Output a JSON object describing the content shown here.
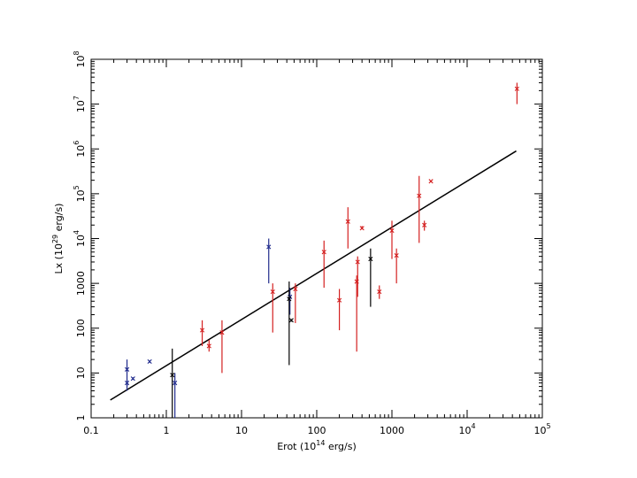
{
  "chart_data": {
    "type": "scatter",
    "title": "",
    "xlabel": "Erot (10",
    "xlabel_exp": "14",
    "xlabel_unit": " erg/s)",
    "ylabel": "Lx (10",
    "ylabel_exp": "29",
    "ylabel_unit": " erg/s)",
    "x_scale": "log",
    "y_scale": "log",
    "xlim": [
      0.1,
      100000
    ],
    "ylim": [
      1,
      100000000
    ],
    "grid": false,
    "legend": "none",
    "x_ticks": [
      {
        "value": 0.1,
        "base": "0.1",
        "exp": ""
      },
      {
        "value": 1,
        "base": "1",
        "exp": ""
      },
      {
        "value": 10,
        "base": "10",
        "exp": ""
      },
      {
        "value": 100,
        "base": "100",
        "exp": ""
      },
      {
        "value": 1000,
        "base": "1000",
        "exp": ""
      },
      {
        "value": 10000,
        "base": "10",
        "exp": "4"
      },
      {
        "value": 100000,
        "base": "10",
        "exp": "5"
      }
    ],
    "y_ticks": [
      {
        "value": 1,
        "base": "1",
        "exp": ""
      },
      {
        "value": 10,
        "base": "10",
        "exp": ""
      },
      {
        "value": 100,
        "base": "100",
        "exp": ""
      },
      {
        "value": 1000,
        "base": "1000",
        "exp": ""
      },
      {
        "value": 10000,
        "base": "10",
        "exp": "4"
      },
      {
        "value": 100000,
        "base": "10",
        "exp": "5"
      },
      {
        "value": 1000000,
        "base": "10",
        "exp": "6"
      },
      {
        "value": 10000000,
        "base": "10",
        "exp": "7"
      },
      {
        "value": 100000000,
        "base": "10",
        "exp": "8"
      }
    ],
    "colors": {
      "red": "#d42020",
      "blue": "#1f2a8c",
      "black": "#000000",
      "fit": "#000000"
    },
    "fit_line": {
      "x": [
        0.18,
        45000
      ],
      "y": [
        2.5,
        900000
      ]
    },
    "series": [
      {
        "color": "red",
        "points": [
          {
            "x": 3.0,
            "y": 90,
            "ylo": 40,
            "yhi": 150
          },
          {
            "x": 3.7,
            "y": 40,
            "ylo": 30,
            "yhi": 55
          },
          {
            "x": 5.5,
            "y": 80,
            "ylo": 10,
            "yhi": 150
          },
          {
            "x": 26,
            "y": 650,
            "ylo": 80,
            "yhi": 1000
          },
          {
            "x": 52,
            "y": 750,
            "ylo": 130,
            "yhi": 1000
          },
          {
            "x": 125,
            "y": 5000,
            "ylo": 800,
            "yhi": 9000
          },
          {
            "x": 200,
            "y": 420,
            "ylo": 90,
            "yhi": 750
          },
          {
            "x": 260,
            "y": 24000,
            "ylo": 6000,
            "yhi": 50000
          },
          {
            "x": 340,
            "y": 1100,
            "ylo": 30,
            "yhi": 1500
          },
          {
            "x": 350,
            "y": 3000,
            "ylo": 500,
            "yhi": 4000
          },
          {
            "x": 400,
            "y": 17000,
            "ylo": 16000,
            "yhi": 19000
          },
          {
            "x": 680,
            "y": 650,
            "ylo": 450,
            "yhi": 900
          },
          {
            "x": 1000,
            "y": 15000,
            "ylo": 3500,
            "yhi": 25000
          },
          {
            "x": 1150,
            "y": 4200,
            "ylo": 1000,
            "yhi": 6000
          },
          {
            "x": 2300,
            "y": 90000,
            "ylo": 8000,
            "yhi": 250000
          },
          {
            "x": 2700,
            "y": 20000,
            "ylo": 15000,
            "yhi": 25000
          },
          {
            "x": 3300,
            "y": 190000,
            "ylo": 180000,
            "yhi": 200000
          },
          {
            "x": 46000,
            "y": 22000000,
            "ylo": 10000000,
            "yhi": 30000000
          }
        ]
      },
      {
        "color": "blue",
        "points": [
          {
            "x": 0.3,
            "y": 12,
            "ylo": 4,
            "yhi": 20
          },
          {
            "x": 0.3,
            "y": 6,
            "ylo": 5,
            "yhi": 7
          },
          {
            "x": 0.36,
            "y": 7.5,
            "ylo": 7,
            "yhi": 8
          },
          {
            "x": 0.6,
            "y": 18,
            "ylo": 17,
            "yhi": 19
          },
          {
            "x": 1.3,
            "y": 6,
            "ylo": 1,
            "yhi": 10
          },
          {
            "x": 23,
            "y": 6500,
            "ylo": 1000,
            "yhi": 10000
          },
          {
            "x": 44,
            "y": 500,
            "ylo": 200,
            "yhi": 800
          }
        ]
      },
      {
        "color": "black",
        "points": [
          {
            "x": 1.2,
            "y": 9,
            "ylo": 1,
            "yhi": 35
          },
          {
            "x": 43,
            "y": 450,
            "ylo": 15,
            "yhi": 1100
          },
          {
            "x": 46,
            "y": 150,
            "ylo": 140,
            "yhi": 160
          },
          {
            "x": 520,
            "y": 3500,
            "ylo": 300,
            "yhi": 6000
          }
        ]
      }
    ]
  }
}
